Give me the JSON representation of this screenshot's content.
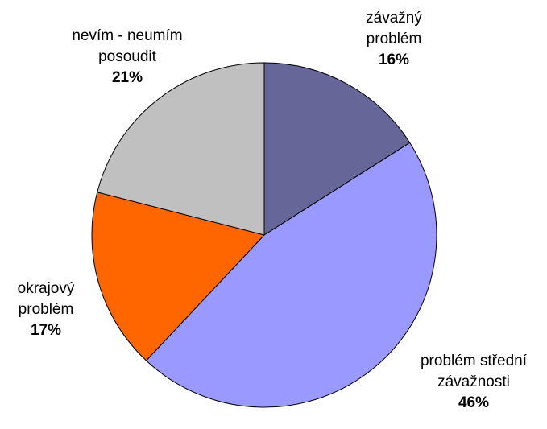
{
  "chart_data": {
    "type": "pie",
    "categories": [
      "závažný problém",
      "problém střední závažnosti",
      "okrajový problém",
      "nevím - neumím posoudit"
    ],
    "values": [
      16,
      46,
      17,
      21
    ],
    "value_labels": [
      "16%",
      "46%",
      "17%",
      "21%"
    ],
    "colors": [
      "#666699",
      "#9999ff",
      "#ff6600",
      "#c0c0c0"
    ]
  }
}
